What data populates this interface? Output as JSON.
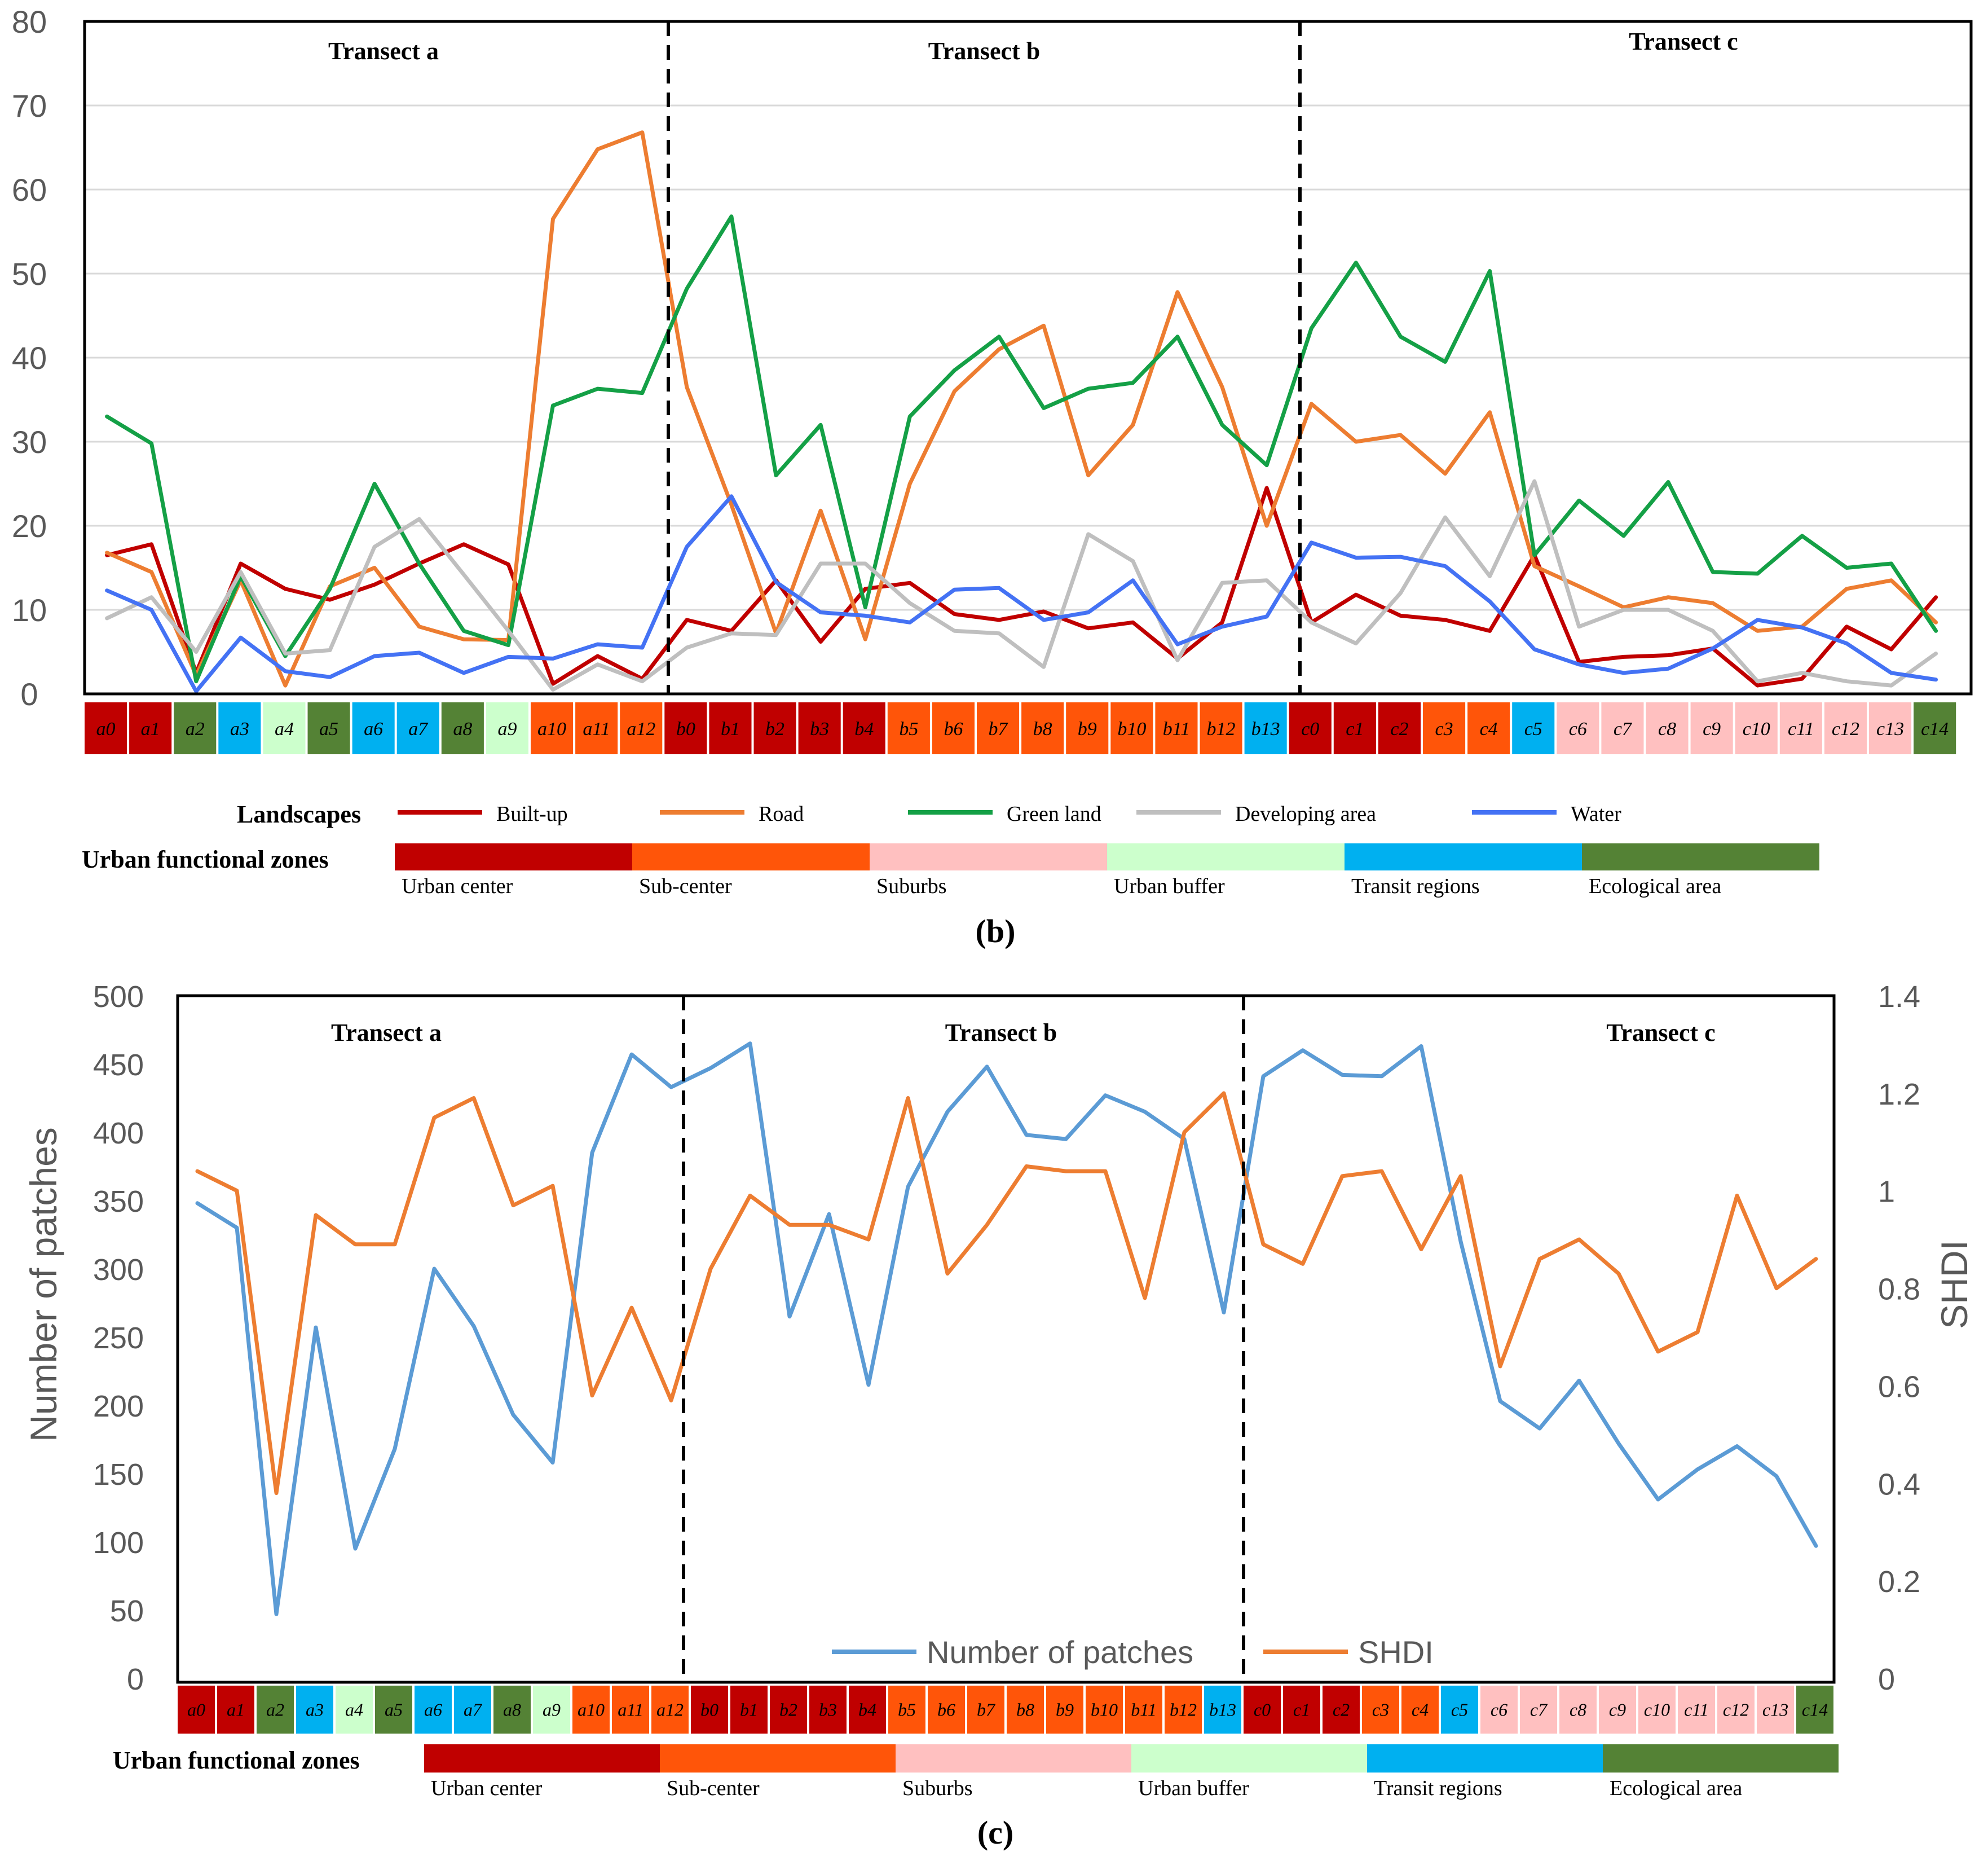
{
  "zone_colors": {
    "urban_center": "#C00000",
    "sub_center": "#FF5509",
    "suburbs": "#FFC0C0",
    "urban_buffer": "#CCFFCC",
    "transit": "#00B0F0",
    "ecological": "#548235"
  },
  "chart_b": {
    "panel_label": "(b)",
    "transects": [
      "Transect a",
      "Transect b",
      "Transect c"
    ],
    "landscapes_label": "Landscapes",
    "zones_label": "Urban functional zones",
    "zone_labels": [
      "Urban center",
      "Sub-center",
      "Suburbs",
      "Urban buffer",
      "Transit regions",
      "Ecological area"
    ]
  },
  "chart_c": {
    "panel_label": "(c)",
    "transects": [
      "Transect a",
      "Transect b",
      "Transect c"
    ],
    "zones_label": "Urban functional zones",
    "zone_labels": [
      "Urban center",
      "Sub-center",
      "Suburbs",
      "Urban buffer",
      "Transit regions",
      "Ecological area"
    ]
  },
  "chart_data": [
    {
      "type": "line",
      "title": "(b)",
      "xlabel": "",
      "ylabel": "",
      "ylim": [
        0,
        80
      ],
      "yticks": [
        0,
        10,
        20,
        30,
        40,
        50,
        60,
        70,
        80
      ],
      "grid": true,
      "categories": [
        "a0",
        "a1",
        "a2",
        "a3",
        "a4",
        "a5",
        "a6",
        "a7",
        "a8",
        "a9",
        "a10",
        "a11",
        "a12",
        "b0",
        "b1",
        "b2",
        "b3",
        "b4",
        "b5",
        "b6",
        "b7",
        "b8",
        "b9",
        "b10",
        "b11",
        "b12",
        "b13",
        "c0",
        "c1",
        "c2",
        "c3",
        "c4",
        "c5",
        "c6",
        "c7",
        "c8",
        "c9",
        "c10",
        "c11",
        "c12",
        "c13",
        "c14"
      ],
      "zones": [
        "uc",
        "uc",
        "eco",
        "tr",
        "ub",
        "eco",
        "tr",
        "tr",
        "eco",
        "ub",
        "sc",
        "sc",
        "sc",
        "uc",
        "uc",
        "uc",
        "uc",
        "uc",
        "sc",
        "sc",
        "sc",
        "sc",
        "sc",
        "sc",
        "sc",
        "sc",
        "tr",
        "uc",
        "uc",
        "uc",
        "sc",
        "sc",
        "tr",
        "sub",
        "sub",
        "sub",
        "sub",
        "sub",
        "sub",
        "sub",
        "sub",
        "eco"
      ],
      "series": [
        {
          "name": "Built-up",
          "color": "#C00000",
          "values": [
            16.5,
            17.8,
            2.5,
            15.5,
            12.5,
            11.2,
            13.0,
            15.5,
            17.8,
            15.4,
            1.2,
            4.5,
            1.8,
            8.8,
            7.5,
            13.5,
            6.2,
            12.5,
            13.2,
            9.5,
            8.8,
            9.8,
            7.8,
            8.5,
            4.2,
            8.5,
            24.5,
            8.5,
            11.8,
            9.3,
            8.8,
            7.5,
            16.5,
            3.8,
            4.4,
            4.6,
            5.4,
            1.0,
            1.8,
            8.0,
            5.3,
            11.5
          ]
        },
        {
          "name": "Road",
          "color": "#ED7D31",
          "values": [
            16.8,
            14.5,
            2.2,
            13.5,
            1.0,
            12.8,
            15.0,
            8.0,
            6.5,
            6.4,
            56.5,
            64.8,
            66.8,
            36.5,
            22.5,
            7.2,
            21.8,
            6.5,
            25.0,
            36.0,
            41.0,
            43.8,
            26.0,
            32.0,
            47.8,
            36.5,
            20.0,
            34.5,
            30.0,
            30.8,
            26.2,
            33.5,
            15.2,
            12.8,
            10.3,
            11.5,
            10.8,
            7.5,
            8.0,
            12.5,
            13.5,
            8.5
          ]
        },
        {
          "name": "Green land",
          "color": "#14A046",
          "values": [
            33.0,
            29.8,
            1.5,
            14.0,
            4.5,
            12.5,
            25.0,
            15.5,
            7.5,
            5.8,
            34.3,
            36.3,
            35.8,
            48.2,
            56.8,
            26.0,
            32.0,
            10.3,
            33.0,
            38.5,
            42.5,
            34.0,
            36.3,
            37.0,
            42.5,
            32.0,
            27.2,
            43.5,
            51.3,
            42.5,
            39.5,
            50.3,
            16.5,
            23.0,
            18.8,
            25.2,
            14.5,
            14.3,
            18.8,
            15.0,
            15.5,
            7.5
          ]
        },
        {
          "name": "Developing area",
          "color": "#BFBFBF",
          "values": [
            9.0,
            11.5,
            5.0,
            14.5,
            4.8,
            5.2,
            17.5,
            20.8,
            14.2,
            7.5,
            0.5,
            3.5,
            1.5,
            5.5,
            7.2,
            7.0,
            15.5,
            15.5,
            10.8,
            7.5,
            7.2,
            3.2,
            19.0,
            15.8,
            4.0,
            13.2,
            13.5,
            8.5,
            6.0,
            12.0,
            21.0,
            14.0,
            25.3,
            8.0,
            10.0,
            10.0,
            7.5,
            1.5,
            2.5,
            1.5,
            1.0,
            4.8
          ]
        },
        {
          "name": "Water",
          "color": "#4472F4",
          "values": [
            12.3,
            10.0,
            0.3,
            6.7,
            2.7,
            2.0,
            4.5,
            4.9,
            2.5,
            4.4,
            4.2,
            5.9,
            5.5,
            17.5,
            23.5,
            13.3,
            9.7,
            9.3,
            8.5,
            12.4,
            12.6,
            8.8,
            9.7,
            13.5,
            5.9,
            8.0,
            9.2,
            18.0,
            16.2,
            16.3,
            15.2,
            11.0,
            5.3,
            3.5,
            2.5,
            3.0,
            5.4,
            8.8,
            7.9,
            6.0,
            2.5,
            1.7
          ]
        }
      ]
    },
    {
      "type": "line",
      "title": "(c)",
      "xlabel": "",
      "ylabel": "Number of patches",
      "ylabel_right": "SHDI",
      "ylim": [
        0,
        500
      ],
      "yticks": [
        0,
        50,
        100,
        150,
        200,
        250,
        300,
        350,
        400,
        450,
        500
      ],
      "ylim_right": [
        0,
        1.4
      ],
      "yticks_right": [
        "0",
        "0.2",
        "0.4",
        "0.6",
        "0.8",
        "1",
        "1.2",
        "1.4"
      ],
      "grid": false,
      "categories": [
        "a0",
        "a1",
        "a2",
        "a3",
        "a4",
        "a5",
        "a6",
        "a7",
        "a8",
        "a9",
        "a10",
        "a11",
        "a12",
        "b0",
        "b1",
        "b2",
        "b3",
        "b4",
        "b5",
        "b6",
        "b7",
        "b8",
        "b9",
        "b10",
        "b11",
        "b12",
        "b13",
        "c0",
        "c1",
        "c2",
        "c3",
        "c4",
        "c5",
        "c6",
        "c7",
        "c8",
        "c9",
        "c10",
        "c11",
        "c12",
        "c13",
        "c14"
      ],
      "zones": [
        "uc",
        "uc",
        "eco",
        "tr",
        "ub",
        "eco",
        "tr",
        "tr",
        "eco",
        "ub",
        "sc",
        "sc",
        "sc",
        "uc",
        "uc",
        "uc",
        "uc",
        "uc",
        "sc",
        "sc",
        "sc",
        "sc",
        "sc",
        "sc",
        "sc",
        "sc",
        "tr",
        "uc",
        "uc",
        "uc",
        "sc",
        "sc",
        "tr",
        "sub",
        "sub",
        "sub",
        "sub",
        "sub",
        "sub",
        "sub",
        "sub",
        "eco"
      ],
      "series": [
        {
          "name": "Number of patches",
          "axis": "left",
          "color": "#5B9BD5",
          "values": [
            348,
            330,
            47,
            257,
            95,
            168,
            300,
            258,
            193,
            158,
            385,
            457,
            433,
            447,
            465,
            265,
            340,
            215,
            360,
            415,
            448,
            398,
            395,
            427,
            415,
            395,
            268,
            441,
            460,
            442,
            441,
            463,
            320,
            203,
            183,
            218,
            172,
            131,
            153,
            170,
            148,
            97
          ]
        },
        {
          "name": "SHDI",
          "axis": "right",
          "color": "#ED7D31",
          "values": [
            1.04,
            1.0,
            0.38,
            0.95,
            0.89,
            0.89,
            1.15,
            1.19,
            0.97,
            1.01,
            0.58,
            0.76,
            0.57,
            0.84,
            0.99,
            0.93,
            0.93,
            0.9,
            1.19,
            0.83,
            0.93,
            1.05,
            1.04,
            1.04,
            0.78,
            1.12,
            1.2,
            0.89,
            0.85,
            1.03,
            1.04,
            0.88,
            1.03,
            0.64,
            0.86,
            0.9,
            0.83,
            0.67,
            0.71,
            0.99,
            0.8,
            0.86
          ]
        }
      ]
    }
  ]
}
